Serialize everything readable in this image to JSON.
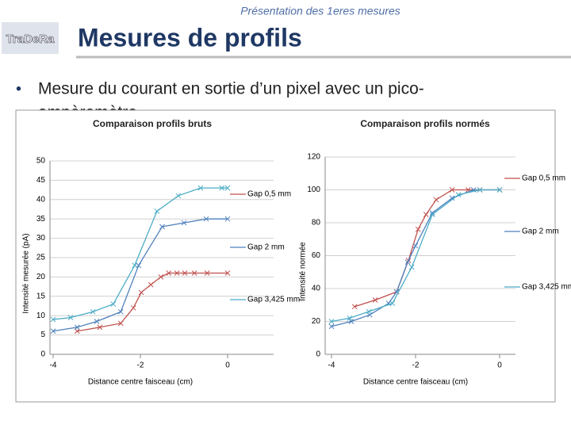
{
  "slide": {
    "header": "Présentation des 1eres mesures",
    "logo": "TraDeRa",
    "title": "Mesures de profils",
    "bullet": "Mesure du courant en sortie d’un pixel avec un pico-",
    "bullet_continued": "ampèremètre"
  },
  "chart_data": [
    {
      "type": "line",
      "title": "Comparaison profils bruts",
      "x_label": "Distance centre faisceau (cm)",
      "y_label": "Intensité mesurée (pA)",
      "xlim": [
        -4,
        0
      ],
      "xticks": [
        -4,
        -2,
        0
      ],
      "ylim": [
        0,
        50
      ],
      "yticks": [
        0,
        5,
        10,
        15,
        20,
        25,
        30,
        35,
        40,
        45,
        50
      ],
      "series": [
        {
          "name": "Gap 0,5 mm",
          "color": "#c0504d",
          "x": [
            -3.45,
            -2.93,
            -2.45,
            -2.16,
            -1.98,
            -1.76,
            -1.53,
            -1.35,
            -1.16,
            -0.98,
            -0.76,
            -0.47,
            0
          ],
          "values": [
            6,
            7,
            8,
            12,
            16,
            18,
            20,
            21,
            21,
            21,
            21,
            21,
            21
          ]
        },
        {
          "name": "Gap 2 mm",
          "color": "#4f81bd",
          "x": [
            -4,
            -3.45,
            -3.0,
            -2.45,
            -2.04,
            -1.5,
            -1.0,
            -0.49,
            0
          ],
          "values": [
            6,
            7,
            8.5,
            11,
            23,
            33,
            34,
            35,
            35
          ]
        },
        {
          "name": "Gap 3,425 mm",
          "color": "#4bacc6",
          "x": [
            -4,
            -3.6,
            -3.09,
            -2.62,
            -2.13,
            -1.62,
            -1.13,
            -0.62,
            -0.13,
            0
          ],
          "values": [
            9,
            9.5,
            11,
            13,
            23,
            37,
            41,
            43,
            43,
            43
          ]
        }
      ]
    },
    {
      "type": "line",
      "title": "Comparaison profils normés",
      "x_label": "Distance centre faisceau (cm)",
      "y_label": "Intensité normée",
      "xlim": [
        -4,
        0
      ],
      "xticks": [
        -4,
        -2,
        0
      ],
      "ylim": [
        0,
        120
      ],
      "yticks": [
        0,
        20,
        40,
        60,
        80,
        100,
        120
      ],
      "series": [
        {
          "name": "Gap 0,5 mm",
          "color": "#c0504d",
          "x": [
            -3.45,
            -2.96,
            -2.45,
            -2.17,
            -1.94,
            -1.75,
            -1.51,
            -1.13,
            -0.75,
            -0.47,
            0
          ],
          "values": [
            29,
            33,
            38,
            57,
            76,
            85,
            94,
            100,
            100,
            100,
            100
          ]
        },
        {
          "name": "Gap 2 mm",
          "color": "#4f81bd",
          "x": [
            -4,
            -3.53,
            -3.09,
            -2.64,
            -2.45,
            -2.19,
            -2.0,
            -1.6,
            -1.13,
            -0.62,
            0
          ],
          "values": [
            17,
            20,
            24,
            31,
            38,
            56,
            66,
            86,
            95,
            100,
            100
          ]
        },
        {
          "name": "Gap 3,425 mm",
          "color": "#4bacc6",
          "x": [
            -4,
            -3.57,
            -3.11,
            -2.55,
            -2.09,
            -1.6,
            -0.98,
            -0.47,
            0
          ],
          "values": [
            20,
            22,
            26,
            31,
            53,
            85,
            97,
            100,
            100
          ]
        }
      ]
    }
  ]
}
